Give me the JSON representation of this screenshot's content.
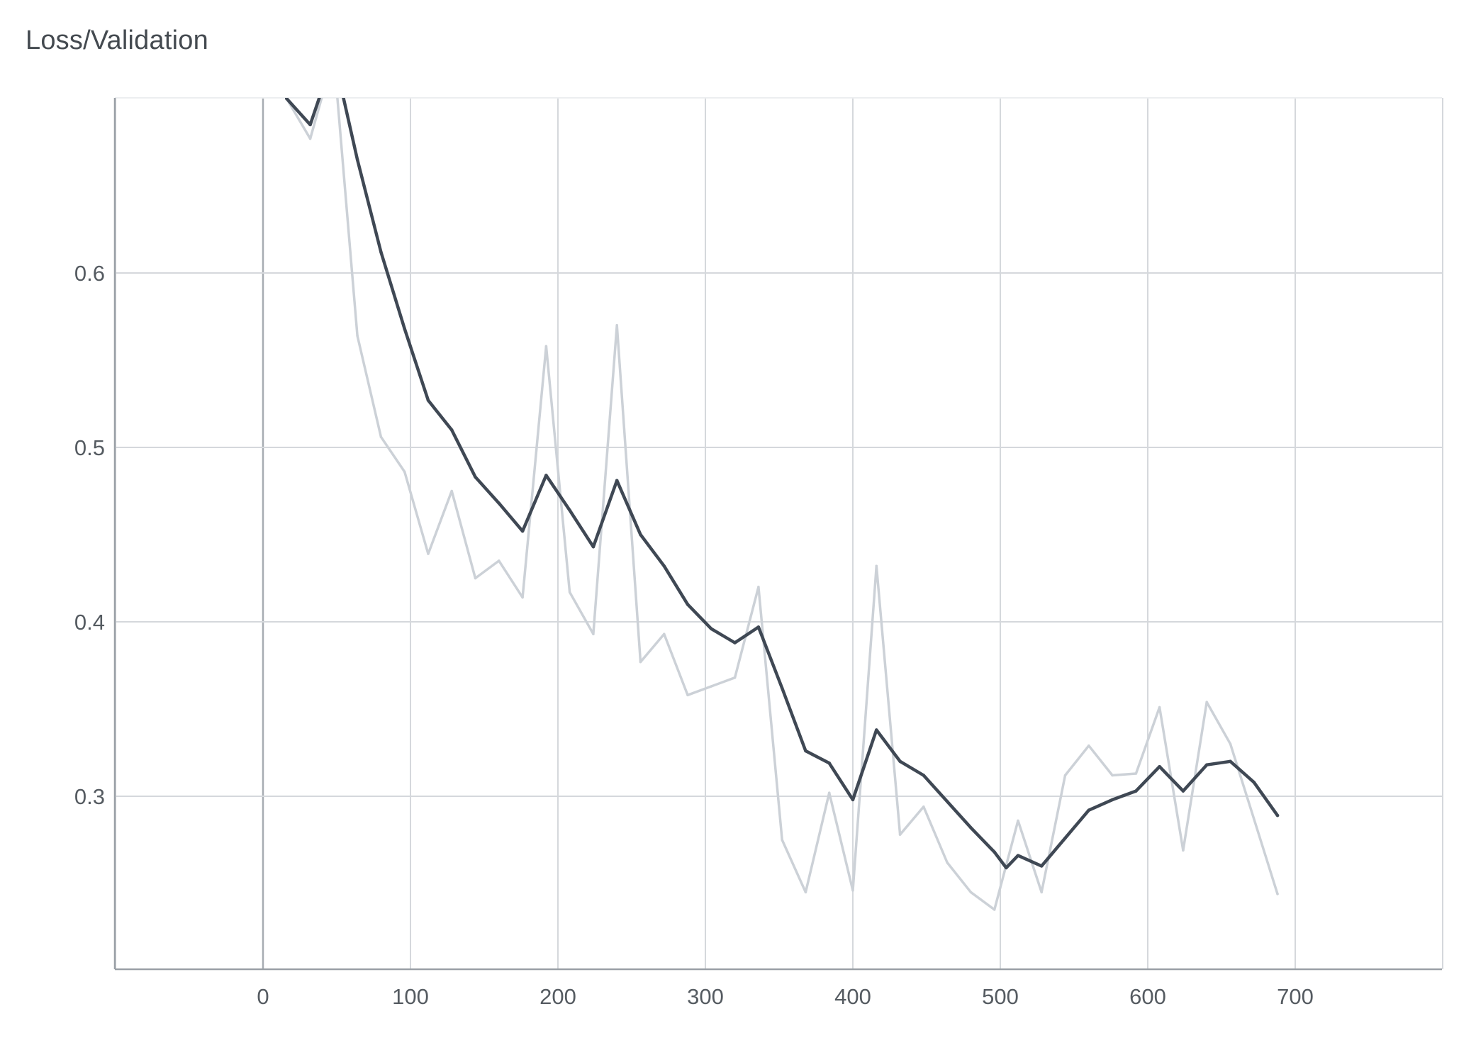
{
  "chart_data": {
    "type": "line",
    "title": "Loss/Validation",
    "xlabel": "",
    "ylabel": "",
    "xlim": [
      -100,
      800
    ],
    "ylim": [
      0.21,
      0.71
    ],
    "x_ticks": [
      0,
      100,
      200,
      300,
      400,
      500,
      600,
      700
    ],
    "y_ticks": [
      0.3,
      0.4,
      0.5,
      0.6
    ],
    "grid": true,
    "legend": "none",
    "colors": {
      "raw": "#ccd1d7",
      "smoothed": "#3f4854",
      "grid": "#d5d8dc",
      "axis": "#9aa0a6"
    },
    "series": [
      {
        "role": "raw",
        "x": [
          16,
          32,
          48,
          64,
          80,
          96,
          112,
          128,
          144,
          160,
          176,
          192,
          208,
          224,
          240,
          256,
          272,
          288,
          304,
          320,
          336,
          352,
          368,
          384,
          400,
          416,
          432,
          448,
          464,
          480,
          496,
          512,
          528,
          544,
          560,
          576,
          592,
          608,
          624,
          640,
          656,
          672,
          688
        ],
        "y": [
          0.7,
          0.677,
          0.725,
          0.564,
          0.506,
          0.486,
          0.439,
          0.475,
          0.425,
          0.435,
          0.414,
          0.558,
          0.417,
          0.393,
          0.57,
          0.377,
          0.393,
          0.358,
          0.363,
          0.368,
          0.42,
          0.275,
          0.245,
          0.302,
          0.246,
          0.432,
          0.278,
          0.294,
          0.262,
          0.245,
          0.235,
          0.286,
          0.245,
          0.312,
          0.329,
          0.312,
          0.313,
          0.351,
          0.269,
          0.354,
          0.33,
          0.287,
          0.244
        ]
      },
      {
        "role": "smoothed",
        "x": [
          16,
          32,
          48,
          64,
          80,
          96,
          112,
          128,
          144,
          160,
          176,
          192,
          208,
          224,
          240,
          256,
          272,
          288,
          304,
          320,
          336,
          352,
          368,
          384,
          400,
          416,
          432,
          448,
          464,
          480,
          496,
          504,
          512,
          528,
          544,
          560,
          576,
          592,
          608,
          624,
          640,
          656,
          672,
          688
        ],
        "y": [
          0.7,
          0.685,
          0.725,
          0.665,
          0.612,
          0.568,
          0.527,
          0.51,
          0.483,
          0.468,
          0.452,
          0.484,
          0.464,
          0.443,
          0.481,
          0.45,
          0.432,
          0.41,
          0.396,
          0.388,
          0.397,
          0.362,
          0.326,
          0.319,
          0.298,
          0.338,
          0.32,
          0.312,
          0.297,
          0.282,
          0.268,
          0.259,
          0.266,
          0.26,
          0.276,
          0.292,
          0.298,
          0.303,
          0.317,
          0.303,
          0.318,
          0.32,
          0.308,
          0.289
        ]
      }
    ]
  }
}
